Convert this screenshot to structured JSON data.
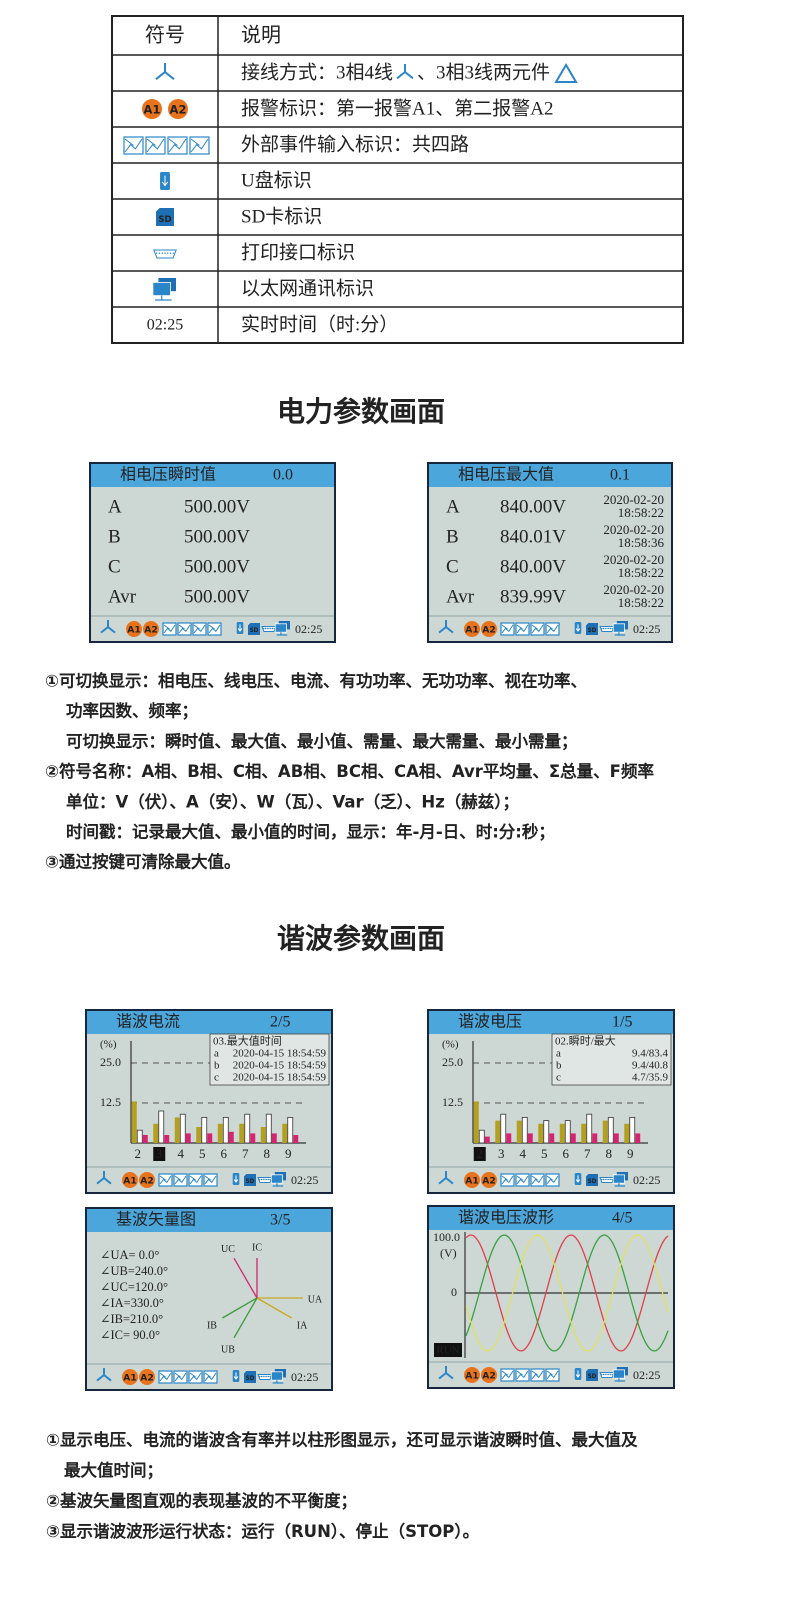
{
  "symbol_table": {
    "header": [
      "符号",
      "说明"
    ],
    "rows": [
      {
        "text": [
          "接线方式：3相4线",
          "、3相3线两元件"
        ]
      },
      {
        "symbol": [
          "A1",
          "A2"
        ],
        "text": "报警标识：第一报警A1、第二报警A2"
      },
      {
        "text": "外部事件输入标识：共四路"
      },
      {
        "text": "U盘标识"
      },
      {
        "text": "SD卡标识"
      },
      {
        "text": "打印接口标识"
      },
      {
        "text": "以太网通讯标识"
      },
      {
        "symbol": "02:25",
        "text": "实时时间（时:分）"
      }
    ]
  },
  "status_bar": {
    "alarms": [
      "A1",
      "A2"
    ],
    "sd": "SD",
    "time": "02:25"
  },
  "power_heading": "电力参数画面",
  "power_screens": [
    {
      "title": "相电压瞬时值",
      "page": "0.0",
      "rows": [
        {
          "label": "A",
          "value": "500.00V",
          "color": "#b3a020"
        },
        {
          "label": "B",
          "value": "500.00V",
          "color": "#3b8a3b"
        },
        {
          "label": "C",
          "value": "500.00V",
          "color": "#d42a6a"
        },
        {
          "label": "Avr",
          "value": "500.00V",
          "color": "#333333"
        }
      ]
    },
    {
      "title": "相电压最大值",
      "page": "0.1",
      "rows": [
        {
          "label": "A",
          "value": "840.00V",
          "date": "2020-02-20",
          "time": "18:58:22",
          "color": "#b3a020"
        },
        {
          "label": "B",
          "value": "840.01V",
          "date": "2020-02-20",
          "time": "18:58:36",
          "color": "#3b8a3b"
        },
        {
          "label": "C",
          "value": "840.00V",
          "date": "2020-02-20",
          "time": "18:58:22",
          "color": "#d42a6a"
        },
        {
          "label": "Avr",
          "value": "839.99V",
          "date": "2020-02-20",
          "time": "18:58:22",
          "color": "#333333"
        }
      ]
    }
  ],
  "power_notes": [
    "①可切换显示：相电压、线电压、电流、有功功率、无功功率、视在功率、",
    "功率因数、频率；",
    "可切换显示：瞬时值、最大值、最小值、需量、最大需量、最小需量；",
    "②符号名称：A相、B相、C相、AB相、BC相、CA相、Avr平均量、Σ总量、F频率",
    "单位：V（伏）、A（安）、W（瓦）、Var（乏）、Hz（赫兹）；",
    "时间戳：记录最大值、最小值的时间，显示：年-月-日、时:分:秒；",
    "③通过按键可清除最大值。"
  ],
  "harmonic_heading": "谐波参数画面",
  "chart_data": [
    {
      "type": "bar",
      "title": "谐波电流",
      "page": "2/5",
      "y_label": "(%)",
      "categories": [
        "2",
        "3",
        "4",
        "5",
        "6",
        "7",
        "8",
        "9"
      ],
      "highlight_index": 1,
      "series": [
        {
          "name": "a",
          "color": "#b3a020",
          "values": [
            13,
            6,
            8,
            5,
            6,
            6,
            5,
            6
          ]
        },
        {
          "name": "b",
          "color": "#ffffff",
          "values": [
            4,
            10,
            9,
            8,
            8,
            9,
            9,
            8
          ]
        },
        {
          "name": "c",
          "color": "#d6246e",
          "values": [
            2.5,
            2.5,
            3,
            3,
            3.5,
            3,
            3,
            2.5
          ]
        }
      ],
      "ylim": [
        0,
        30
      ],
      "yticks": [
        {
          "value": 25,
          "label": "25.0"
        },
        {
          "value": 12.5,
          "label": "12.5"
        }
      ],
      "grid": true,
      "legend_title": "03.最大值时间",
      "legend_rows": [
        {
          "text": "2020-04-15 18:54:59",
          "color": "#b3a020"
        },
        {
          "text": "2020-04-15 18:54:59",
          "color": "#3b8a3b"
        },
        {
          "text": "2020-04-15 18:54:59",
          "color": "#d6246e"
        }
      ]
    },
    {
      "type": "bar",
      "title": "谐波电压",
      "page": "1/5",
      "y_label": "(%)",
      "categories": [
        "2",
        "3",
        "4",
        "5",
        "6",
        "7",
        "8",
        "9"
      ],
      "highlight_index": 0,
      "series": [
        {
          "name": "a",
          "color": "#b3a020",
          "values": [
            13,
            7,
            7,
            6,
            6,
            6,
            7,
            6
          ]
        },
        {
          "name": "b",
          "color": "#ffffff",
          "values": [
            4,
            9,
            8,
            7,
            7,
            9,
            8,
            8
          ]
        },
        {
          "name": "c",
          "color": "#d6246e",
          "values": [
            2,
            3,
            3,
            3,
            3,
            3,
            3,
            3
          ]
        }
      ],
      "ylim": [
        0,
        30
      ],
      "yticks": [
        {
          "value": 25,
          "label": "25.0"
        },
        {
          "value": 12.5,
          "label": "12.5"
        }
      ],
      "grid": true,
      "legend_title": "02.瞬时/最大",
      "legend_rows": [
        {
          "text": "9.4/83.4",
          "color": "#b3a020"
        },
        {
          "text": "9.4/40.8",
          "color": "#3b8a3b"
        },
        {
          "text": "4.7/35.9",
          "color": "#d6246e"
        }
      ]
    }
  ],
  "vector_screen": {
    "title": "基波矢量图",
    "page": "3/5",
    "vectors": [
      {
        "text": "∠UA=  0.0°",
        "name": "UA",
        "angle": 0,
        "color": "#c9a820"
      },
      {
        "text": "∠UB=240.0°",
        "name": "UB",
        "angle": 240,
        "color": "#3b9a3b"
      },
      {
        "text": "∠UC=120.0°",
        "name": "UC",
        "angle": 120,
        "color": "#d6246e"
      },
      {
        "text": "∠IA=330.0°",
        "name": "IA",
        "angle": 330,
        "color": "#c9a820"
      },
      {
        "text": "∠IB=210.0°",
        "name": "IB",
        "angle": 210,
        "color": "#3b9a3b"
      },
      {
        "text": "∠IC= 90.0°",
        "name": "IC",
        "angle": 90,
        "color": "#d6246e"
      }
    ]
  },
  "waveform_screen": {
    "title": "谐波电压波形",
    "page": "4/5",
    "top_label": "100.0",
    "unit": "(V)",
    "zero_label": "0",
    "state": "RUN"
  },
  "harmonic_notes": [
    "①显示电压、电流的谐波含有率并以柱形图显示，还可显示谐波瞬时值、最大值及",
    "最大值时间；",
    "②基波矢量图直观的表现基波的不平衡度；",
    "③显示谐波波形运行状态：运行（RUN）、停止（STOP）。"
  ]
}
